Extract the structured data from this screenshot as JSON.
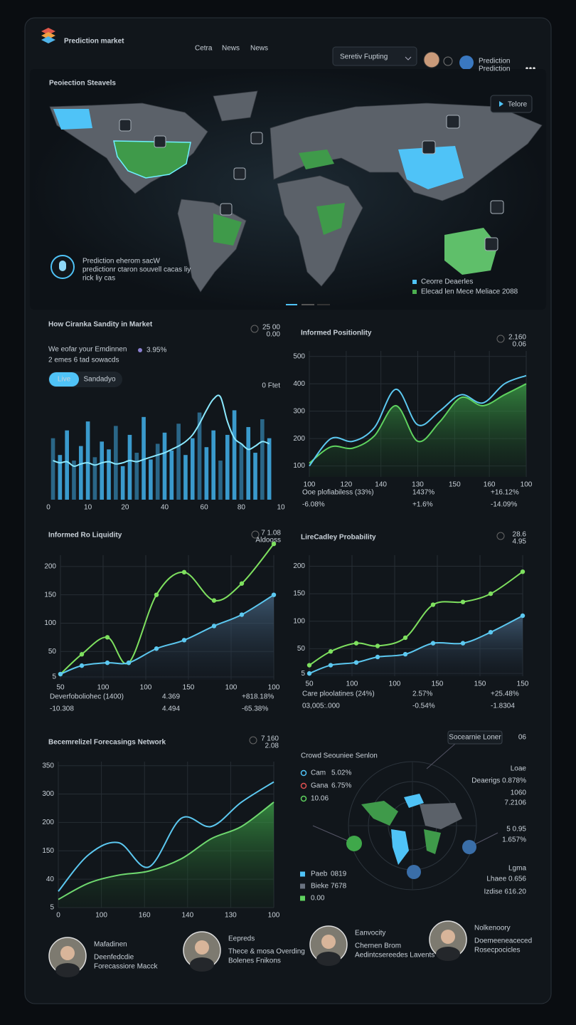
{
  "header": {
    "brand": "Prediction market",
    "nav": [
      "Cetra",
      "News",
      "News"
    ],
    "search": "Seretiv Fupting",
    "user": [
      "Prediction",
      "Prediction"
    ]
  },
  "map": {
    "title": "Peoiection Steavels",
    "button": "Telore",
    "note": [
      "Prediction eherom sacW",
      "predictionr ctaron souvell cacas liy",
      "rick liy cas"
    ],
    "legend": [
      {
        "label": "Ceorre Deaerles",
        "color": "#4fc3f7"
      },
      {
        "label": "Elecad len Mece Meliace 2088",
        "color": "#4caf50"
      }
    ]
  },
  "chart_data": [
    {
      "type": "bar",
      "title": "How Ciranka Sandity in Market",
      "corner": [
        "25 00",
        "0.00"
      ],
      "subtitle": [
        "We eofar your Emdinnen",
        "2 emes 6 tad sowacds"
      ],
      "subtitle_value": "3.95%",
      "toggle": [
        "Live",
        "Sandadyo"
      ],
      "note": "0 Ftet",
      "x": [
        2,
        5,
        8,
        11,
        14,
        17,
        20,
        23,
        26,
        29,
        32,
        35,
        38,
        41,
        44,
        47,
        50,
        53,
        56,
        59,
        62,
        65,
        68,
        71,
        74,
        77,
        80,
        83,
        86,
        89,
        92,
        95
      ],
      "values": [
        55,
        40,
        62,
        35,
        48,
        70,
        38,
        52,
        45,
        66,
        30,
        58,
        42,
        74,
        36,
        50,
        60,
        44,
        68,
        40,
        55,
        78,
        47,
        62,
        35,
        58,
        80,
        50,
        65,
        42,
        72,
        55
      ],
      "color": "#3fa9e0",
      "line": {
        "values": [
          35,
          33,
          34,
          30,
          32,
          33,
          31,
          33,
          34,
          32,
          33,
          35,
          34,
          36,
          38,
          40,
          42,
          45,
          48,
          52,
          58,
          68,
          80,
          90,
          92,
          70,
          55,
          50,
          45,
          48,
          52,
          50
        ],
        "color": "#8be9ff"
      },
      "xlim": [
        0,
        100
      ],
      "ylim": [
        0,
        100
      ],
      "xticks": [
        0,
        {
          "value": 17,
          "label": "10"
        },
        {
          "value": 33,
          "label": "20"
        },
        {
          "value": 50,
          "label": "40"
        },
        {
          "value": 67,
          "label": "60"
        },
        {
          "value": 83,
          "label": "80"
        },
        {
          "value": 100,
          "label": "10"
        }
      ]
    },
    {
      "type": "line",
      "title": "Informed Positionlity",
      "corner": [
        "2.160",
        "0.06"
      ],
      "x": [
        0,
        10,
        20,
        30,
        40,
        50,
        60,
        70,
        80,
        90,
        100
      ],
      "series": [
        {
          "color": "#5fd35f",
          "area": true,
          "values": [
            110,
            170,
            165,
            210,
            320,
            190,
            260,
            350,
            320,
            360,
            400
          ]
        },
        {
          "color": "#5cc8f0",
          "values": [
            100,
            200,
            190,
            240,
            380,
            250,
            300,
            360,
            330,
            400,
            430
          ]
        }
      ],
      "xlim": [
        0,
        100
      ],
      "ylim": [
        60,
        520
      ],
      "yticks": [
        100,
        200,
        300,
        400,
        500
      ],
      "xticks": [
        {
          "value": 0,
          "label": "100"
        },
        {
          "value": 17,
          "label": "120"
        },
        {
          "value": 33,
          "label": "140"
        },
        {
          "value": 50,
          "label": "130"
        },
        {
          "value": 67,
          "label": "150"
        },
        {
          "value": 83,
          "label": "160"
        },
        100
      ],
      "grid": true,
      "stats": [
        [
          "Ooe plofiabiless (33%)",
          "-6.08%"
        ],
        [
          "1437%",
          "+1.6%"
        ],
        [
          "+16.12%",
          "-14.09%"
        ]
      ]
    },
    {
      "type": "line",
      "title": "Informed Ro Liquidity",
      "corner": [
        "7 1.08",
        "Aldooss"
      ],
      "x": [
        0,
        10,
        22,
        32,
        45,
        58,
        72,
        85,
        100
      ],
      "series": [
        {
          "color": "#7ee05f",
          "markers": true,
          "values": [
            10,
            45,
            75,
            30,
            150,
            190,
            140,
            170,
            240
          ]
        },
        {
          "color": "#5cc8f0",
          "area": true,
          "markers": true,
          "values": [
            10,
            25,
            30,
            30,
            55,
            70,
            95,
            115,
            150
          ]
        }
      ],
      "xlim": [
        0,
        100
      ],
      "ylim": [
        0,
        220
      ],
      "yticks": [
        5,
        50,
        100,
        150,
        200
      ],
      "xticks": [
        {
          "value": 0,
          "label": "50"
        },
        {
          "value": 20,
          "label": "100"
        },
        {
          "value": 40,
          "label": "100"
        },
        {
          "value": 60,
          "label": "150"
        },
        {
          "value": 80,
          "label": "100"
        },
        100
      ],
      "grid": true,
      "stats": [
        [
          "Deverfoboliohec (1400)",
          "-10.308"
        ],
        [
          "4.369",
          "4.494"
        ],
        [
          "+818.18%",
          "-65.38%"
        ]
      ]
    },
    {
      "type": "line",
      "title": "LireCadley Probability",
      "corner": [
        "28.6",
        "4.95"
      ],
      "x": [
        0,
        10,
        22,
        32,
        45,
        58,
        72,
        85,
        100
      ],
      "series": [
        {
          "color": "#7ee05f",
          "markers": true,
          "values": [
            20,
            45,
            60,
            55,
            70,
            130,
            135,
            150,
            190
          ]
        },
        {
          "color": "#5cc8f0",
          "area": true,
          "markers": true,
          "values": [
            5,
            20,
            25,
            35,
            40,
            60,
            60,
            80,
            110
          ]
        }
      ],
      "xlim": [
        0,
        100
      ],
      "ylim": [
        0,
        220
      ],
      "yticks": [
        5,
        50,
        100,
        150,
        200
      ],
      "xticks": [
        {
          "value": 0,
          "label": "50"
        },
        {
          "value": 20,
          "label": "100"
        },
        {
          "value": 40,
          "label": "100"
        },
        {
          "value": 60,
          "label": "150"
        },
        {
          "value": 80,
          "label": "150"
        },
        {
          "value": 100,
          "label": "150"
        }
      ],
      "grid": true,
      "stats": [
        [
          "Care ploolatines (24%)",
          "03,005:.000"
        ],
        [
          "2.57%",
          "-0.54%"
        ],
        [
          "+25.48%",
          "-1.8304"
        ]
      ]
    },
    {
      "type": "line",
      "title": "Becemrelizel Forecasings Network",
      "corner": [
        "7 160",
        "2.08"
      ],
      "x": [
        0,
        14,
        28,
        42,
        57,
        71,
        85,
        100
      ],
      "series": [
        {
          "color": "#6fd86f",
          "area": true,
          "values": [
            20,
            60,
            80,
            90,
            120,
            170,
            200,
            260
          ]
        },
        {
          "color": "#5cc8f0",
          "values": [
            40,
            130,
            160,
            100,
            220,
            200,
            260,
            310
          ]
        }
      ],
      "xlim": [
        0,
        100
      ],
      "ylim": [
        0,
        360
      ],
      "yticks": [
        {
          "value": 0,
          "label": "5"
        },
        {
          "value": 70,
          "label": "40"
        },
        {
          "value": 140,
          "label": "150"
        },
        {
          "value": 210,
          "label": "200"
        },
        {
          "value": 280,
          "label": "300"
        },
        350
      ],
      "xticks": [
        0,
        {
          "value": 20,
          "label": "100"
        },
        {
          "value": 40,
          "label": "160"
        },
        {
          "value": 60,
          "label": "140"
        },
        {
          "value": 80,
          "label": "130"
        },
        100
      ],
      "grid": true
    }
  ],
  "crowd": {
    "title": "Crowd Seouniee Senlon",
    "button": "Socearnie Loner",
    "badge": "06",
    "legend": [
      {
        "label": "Cam",
        "value": "5.02%",
        "color": "#4fc3f7"
      },
      {
        "label": "Gana",
        "value": "6.75%",
        "color": "#e05050"
      },
      {
        "value": "10.06",
        "color": "#5fd35f"
      }
    ],
    "right": [
      "Loae",
      "Deaerigs 0.878%",
      "1060",
      "7.2106",
      "5 0.95",
      "1.657%",
      "Lgma",
      "Lhaee 0.656",
      "Izdise 616.20"
    ],
    "bottom": [
      {
        "label": "Paeb",
        "value": "0819",
        "color": "#4fc3f7"
      },
      {
        "label": "Bieke",
        "value": "7678",
        "color": "#6a7380"
      },
      {
        "value": "0.00",
        "color": "#5fd35f"
      }
    ]
  },
  "people": [
    {
      "name": "Mafadinen",
      "lines": [
        "Deenfedcdie",
        "Forecassiore Macck"
      ]
    },
    {
      "name": "Eepreds",
      "lines": [
        "Thece & mosa Overding",
        "Bolenes Fnikons"
      ]
    },
    {
      "name": "Eanvocity",
      "lines": [
        "Chernen Brom",
        "Aedintcsereedes Lavents"
      ]
    },
    {
      "name": "Nolkenoory",
      "lines": [
        "Doemeeneaceced",
        "Rosecpocicles"
      ]
    }
  ]
}
